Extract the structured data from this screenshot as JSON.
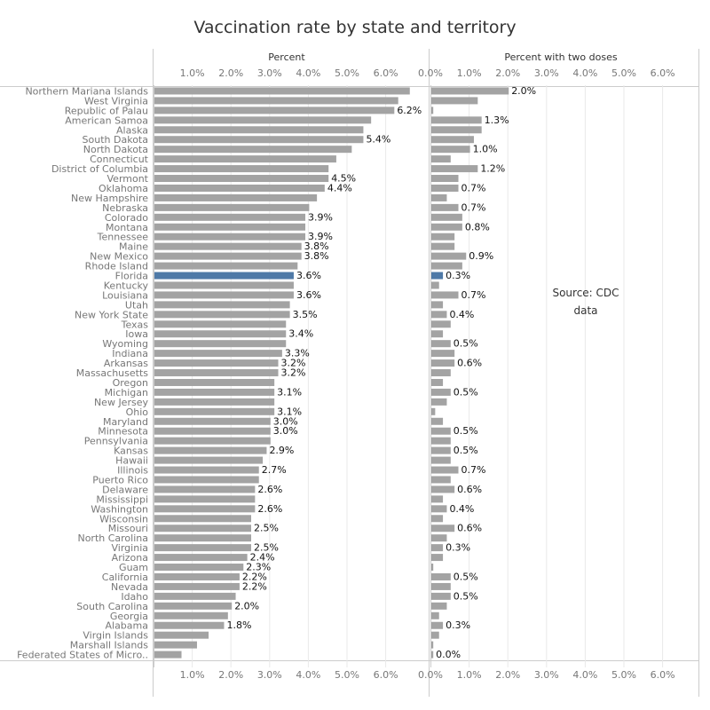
{
  "title": "Vaccination rate by state and territory",
  "note": "Source: CDC data",
  "colors": {
    "bar": "#a3a3a3",
    "highlight": "#4e79a7",
    "grid": "#e9e9e9",
    "axis": "#cccccc",
    "label": "#777777",
    "value": "#111111"
  },
  "chart_data": {
    "type": "bar",
    "orientation": "horizontal",
    "highlight": "Florida",
    "categories": [
      "Northern Mariana Islands",
      "West Virginia",
      "Republic of Palau",
      "American Samoa",
      "Alaska",
      "South Dakota",
      "North Dakota",
      "Connecticut",
      "District of Columbia",
      "Vermont",
      "Oklahoma",
      "New Hampshire",
      "Nebraska",
      "Colorado",
      "Montana",
      "Tennessee",
      "Maine",
      "New Mexico",
      "Rhode Island",
      "Florida",
      "Kentucky",
      "Louisiana",
      "Utah",
      "New York State",
      "Texas",
      "Iowa",
      "Wyoming",
      "Indiana",
      "Arkansas",
      "Massachusetts",
      "Oregon",
      "Michigan",
      "New Jersey",
      "Ohio",
      "Maryland",
      "Minnesota",
      "Pennsylvania",
      "Kansas",
      "Hawaii",
      "Illinois",
      "Puerto Rico",
      "Delaware",
      "Mississippi",
      "Washington",
      "Wisconsin",
      "Missouri",
      "North Carolina",
      "Virginia",
      "Arizona",
      "Guam",
      "California",
      "Nevada",
      "Idaho",
      "South Carolina",
      "Georgia",
      "Alabama",
      "Virgin Islands",
      "Marshall Islands",
      "Federated States of Micro.."
    ],
    "series": [
      {
        "name": "Percent",
        "xlim": [
          0,
          7
        ],
        "ticks": [
          "1.0%",
          "2.0%",
          "3.0%",
          "4.0%",
          "5.0%",
          "6.0%"
        ],
        "values": [
          6.6,
          6.3,
          6.2,
          5.6,
          5.4,
          5.4,
          5.1,
          4.7,
          4.5,
          4.5,
          4.4,
          4.2,
          4.0,
          3.9,
          3.9,
          3.9,
          3.8,
          3.8,
          3.7,
          3.6,
          3.6,
          3.6,
          3.5,
          3.5,
          3.4,
          3.4,
          3.4,
          3.3,
          3.2,
          3.2,
          3.1,
          3.1,
          3.1,
          3.1,
          3.0,
          3.0,
          3.0,
          2.9,
          2.8,
          2.7,
          2.7,
          2.6,
          2.6,
          2.6,
          2.5,
          2.5,
          2.5,
          2.5,
          2.4,
          2.3,
          2.2,
          2.2,
          2.1,
          2.0,
          1.9,
          1.8,
          1.4,
          1.1,
          0.7
        ],
        "labels": [
          "",
          "",
          "6.2%",
          "",
          "",
          "5.4%",
          "",
          "",
          "",
          "4.5%",
          "4.4%",
          "",
          "",
          "3.9%",
          "",
          "3.9%",
          "3.8%",
          "3.8%",
          "",
          "3.6%",
          "",
          "3.6%",
          "",
          "3.5%",
          "",
          "3.4%",
          "",
          "3.3%",
          "3.2%",
          "3.2%",
          "",
          "3.1%",
          "",
          "3.1%",
          "3.0%",
          "3.0%",
          "",
          "2.9%",
          "",
          "2.7%",
          "",
          "2.6%",
          "",
          "2.6%",
          "",
          "2.5%",
          "",
          "2.5%",
          "2.4%",
          "2.3%",
          "2.2%",
          "2.2%",
          "",
          "2.0%",
          "",
          "1.8%",
          "",
          "",
          ""
        ]
      },
      {
        "name": "Percent with two doses",
        "xlim": [
          0,
          7
        ],
        "ticks": [
          "0.0%",
          "1.0%",
          "2.0%",
          "3.0%",
          "4.0%",
          "5.0%",
          "6.0%"
        ],
        "values": [
          2.0,
          1.2,
          0.05,
          1.3,
          1.3,
          1.1,
          1.0,
          0.5,
          1.2,
          0.7,
          0.7,
          0.4,
          0.7,
          0.8,
          0.8,
          0.6,
          0.6,
          0.9,
          0.8,
          0.3,
          0.2,
          0.7,
          0.3,
          0.4,
          0.5,
          0.3,
          0.5,
          0.6,
          0.6,
          0.5,
          0.3,
          0.5,
          0.4,
          0.1,
          0.3,
          0.5,
          0.5,
          0.5,
          0.5,
          0.7,
          0.5,
          0.6,
          0.3,
          0.4,
          0.3,
          0.6,
          0.4,
          0.3,
          0.3,
          0.05,
          0.5,
          0.5,
          0.5,
          0.4,
          0.2,
          0.3,
          0.2,
          0.05,
          0.05
        ],
        "labels": [
          "2.0%",
          "",
          "",
          "1.3%",
          "",
          "",
          "1.0%",
          "",
          "1.2%",
          "",
          "0.7%",
          "",
          "0.7%",
          "",
          "0.8%",
          "",
          "",
          "0.9%",
          "",
          "0.3%",
          "",
          "0.7%",
          "",
          "0.4%",
          "",
          "",
          "0.5%",
          "",
          "0.6%",
          "",
          "",
          "0.5%",
          "",
          "",
          "",
          "0.5%",
          "",
          "0.5%",
          "",
          "0.7%",
          "",
          "0.6%",
          "",
          "0.4%",
          "",
          "0.6%",
          "",
          "0.3%",
          "",
          "",
          "0.5%",
          "",
          "0.5%",
          "",
          "",
          "0.3%",
          "",
          "",
          "0.0%"
        ]
      }
    ]
  }
}
